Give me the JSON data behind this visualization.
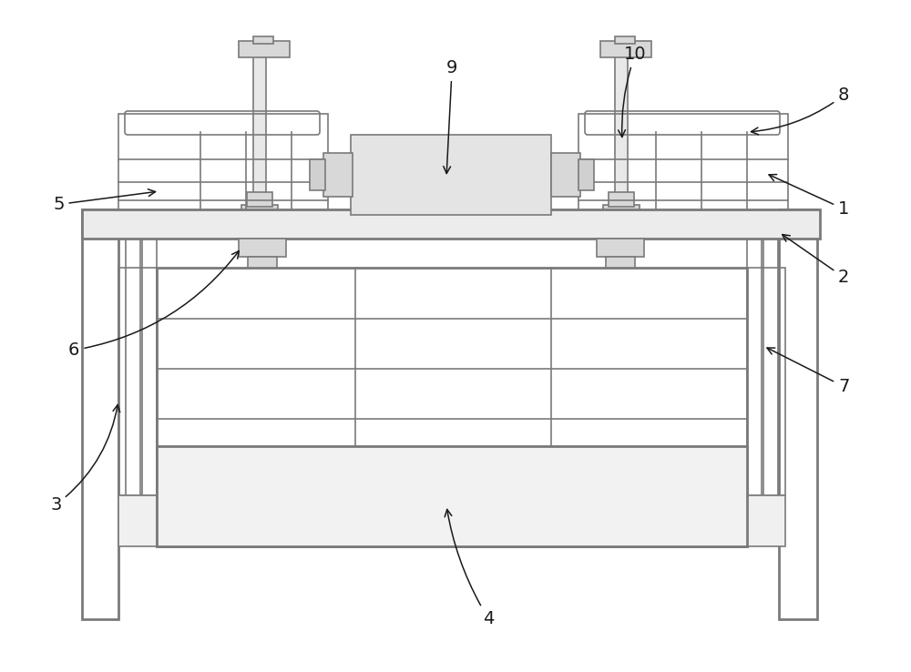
{
  "bg_color": "#ffffff",
  "line_color": "#7a7a7a",
  "line_width": 1.2,
  "thick_line": 2.0,
  "label_color": "#1a1a1a",
  "label_fontsize": 14,
  "arrow_color": "#1a1a1a",
  "fig_width": 10.0,
  "fig_height": 7.38,
  "dpi": 100
}
